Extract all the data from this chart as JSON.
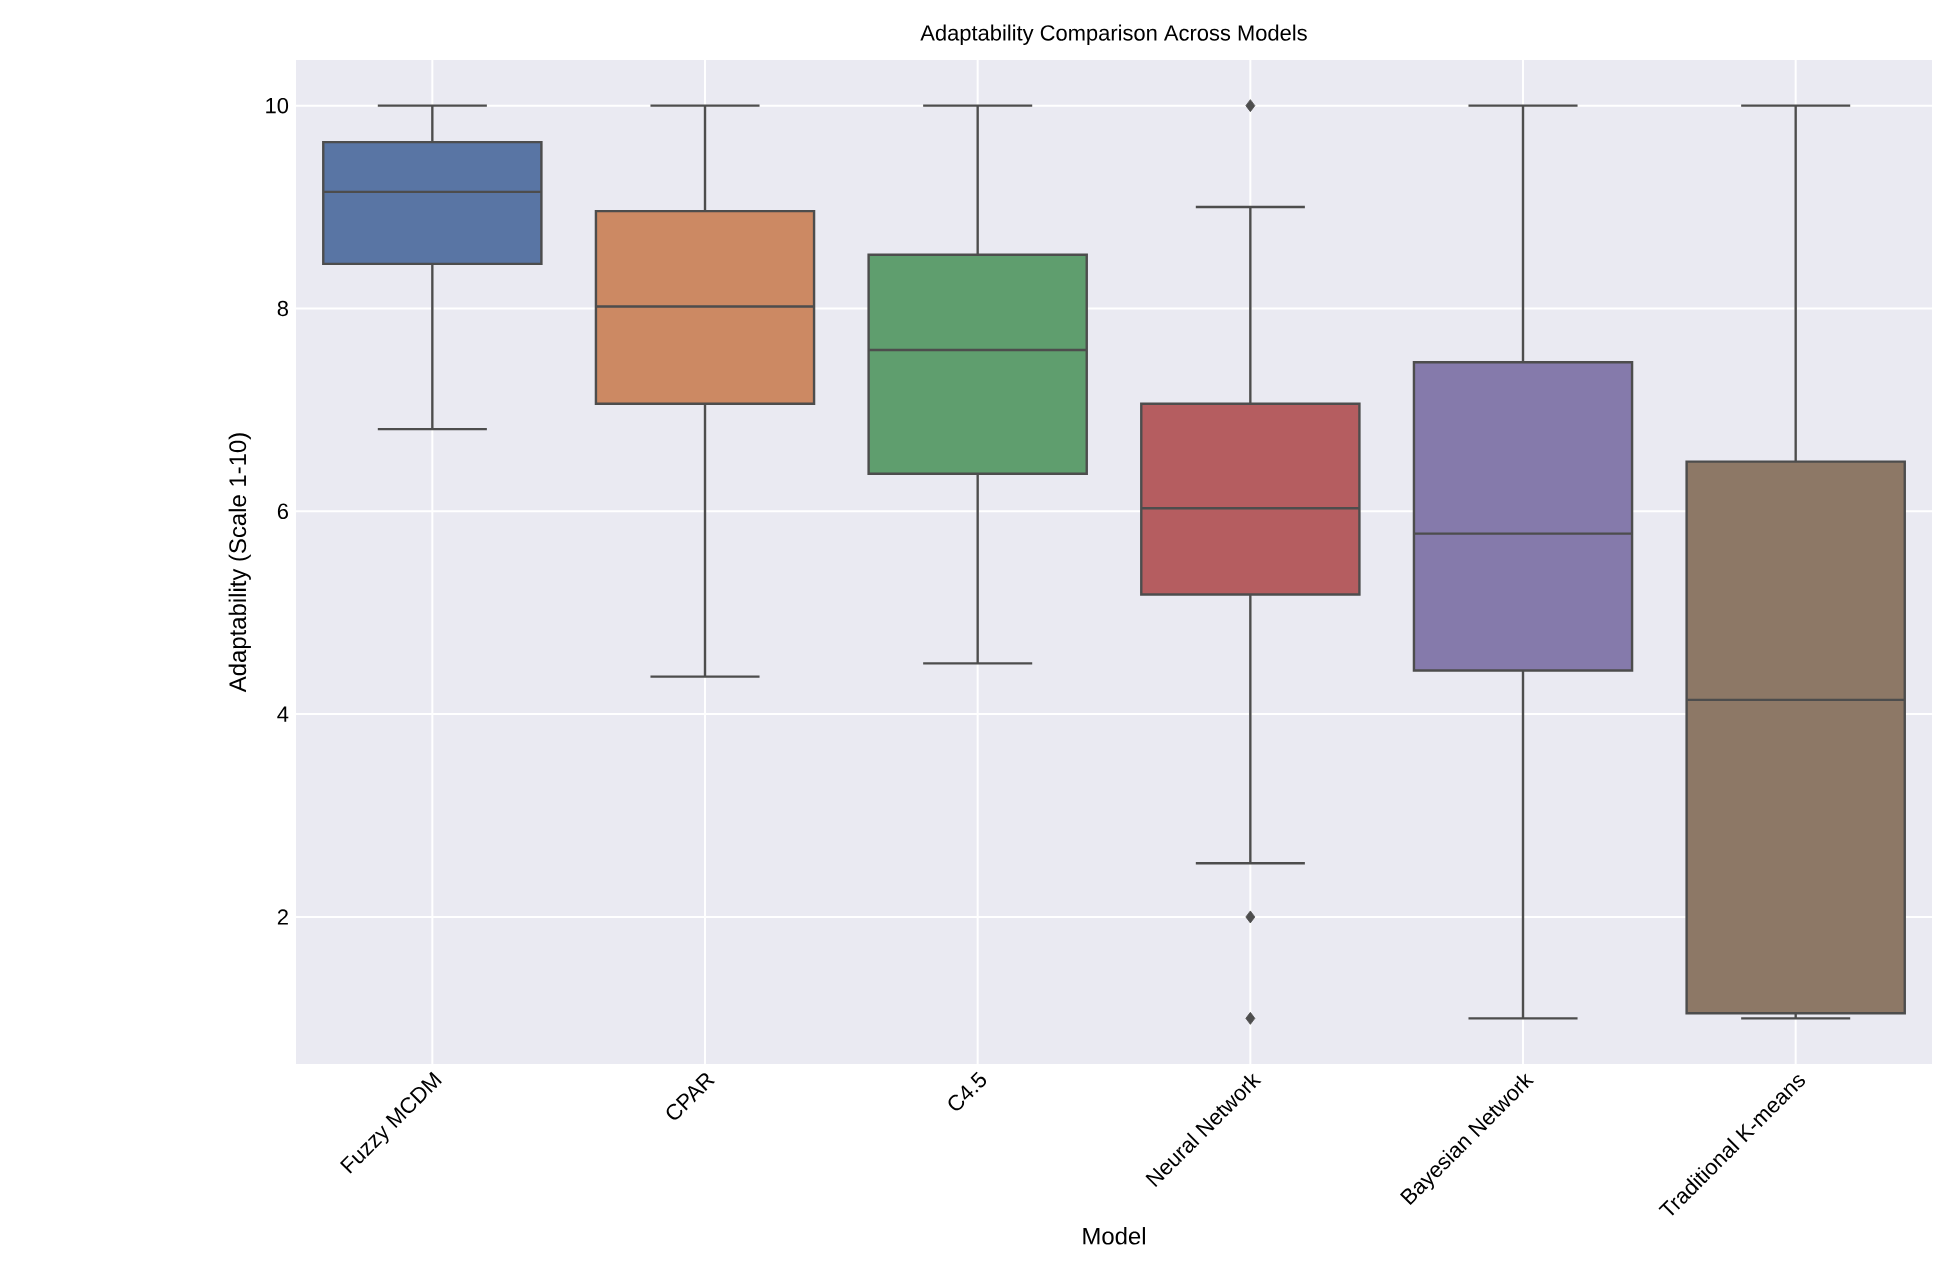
{
  "chart_data": {
    "type": "box",
    "title": "Adaptability Comparison Across Models",
    "xlabel": "Model",
    "ylabel": "Adaptability (Scale 1-10)",
    "categories": [
      "Fuzzy MCDM",
      "CPAR",
      "C4.5",
      "Neural Network",
      "Bayesian Network",
      "Traditional K-means"
    ],
    "colors": [
      "#5975a4",
      "#cc8963",
      "#5f9e6e",
      "#b55d60",
      "#857aab",
      "#8d7866"
    ],
    "boxes": [
      {
        "low": 6.81,
        "q1": 8.44,
        "median": 9.15,
        "q3": 9.64,
        "high": 10
      },
      {
        "low": 4.37,
        "q1": 7.06,
        "median": 8.02,
        "q3": 8.96,
        "high": 10
      },
      {
        "low": 4.5,
        "q1": 6.37,
        "median": 7.59,
        "q3": 8.53,
        "high": 10
      },
      {
        "low": 2.53,
        "q1": 5.18,
        "median": 6.03,
        "q3": 7.06,
        "high": 9.0,
        "outliers": [
          10,
          2,
          1
        ]
      },
      {
        "low": 1.0,
        "q1": 4.43,
        "median": 5.78,
        "q3": 7.47,
        "high": 10
      },
      {
        "low": 1.0,
        "q1": 1.05,
        "median": 4.14,
        "q3": 6.49,
        "high": 10
      }
    ],
    "ylim": [
      0.55,
      10.45
    ],
    "yticks": [
      2,
      4,
      6,
      8,
      10
    ],
    "grid": true,
    "marker": "diamond"
  }
}
